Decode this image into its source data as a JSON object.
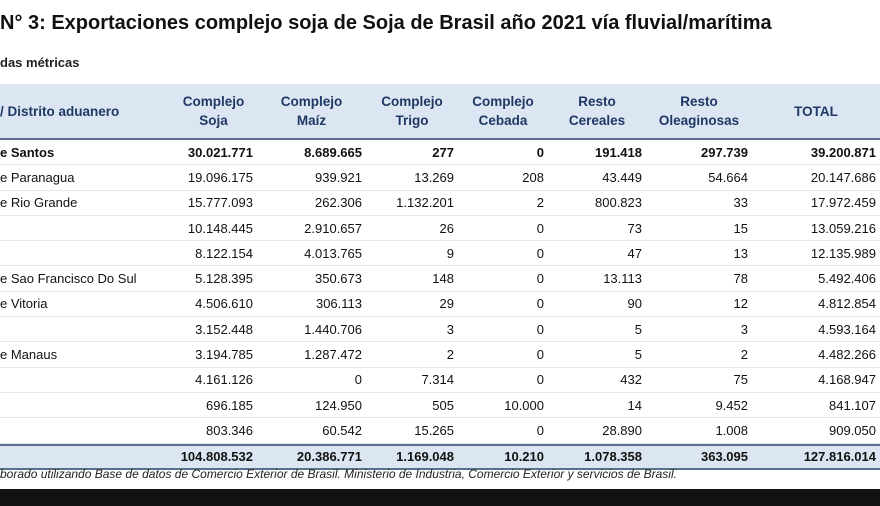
{
  "header": {
    "title": "N° 3: Exportaciones complejo soja de Soja de Brasil año 2021 vía fluvial/marítima",
    "subtitle": "das métricas"
  },
  "table": {
    "columns": [
      "/ Distrito aduanero",
      "Complejo\nSoja",
      "Complejo\nMaíz",
      "Complejo\nTrigo",
      "Complejo\nCebada",
      "Resto\nCereales",
      "Resto\nOleaginosas",
      "TOTAL"
    ],
    "rows": [
      {
        "label": "e Santos",
        "cells": [
          "30.021.771",
          "8.689.665",
          "277",
          "0",
          "191.418",
          "297.739",
          "39.200.871"
        ]
      },
      {
        "label": "e Paranagua",
        "cells": [
          "19.096.175",
          "939.921",
          "13.269",
          "208",
          "43.449",
          "54.664",
          "20.147.686"
        ]
      },
      {
        "label": "e Rio Grande",
        "cells": [
          "15.777.093",
          "262.306",
          "1.132.201",
          "2",
          "800.823",
          "33",
          "17.972.459"
        ]
      },
      {
        "cells": [
          "10.148.445",
          "2.910.657",
          "26",
          "0",
          "73",
          "15",
          "13.059.216"
        ]
      },
      {
        "cells": [
          "8.122.154",
          "4.013.765",
          "9",
          "0",
          "47",
          "13",
          "12.135.989"
        ]
      },
      {
        "label": "e Sao Francisco Do Sul",
        "cells": [
          "5.128.395",
          "350.673",
          "148",
          "0",
          "13.113",
          "78",
          "5.492.406"
        ]
      },
      {
        "label": "e Vitoria",
        "cells": [
          "4.506.610",
          "306.113",
          "29",
          "0",
          "90",
          "12",
          "4.812.854"
        ]
      },
      {
        "cells": [
          "3.152.448",
          "1.440.706",
          "3",
          "0",
          "5",
          "3",
          "4.593.164"
        ]
      },
      {
        "label": "e Manaus",
        "cells": [
          "3.194.785",
          "1.287.472",
          "2",
          "0",
          "5",
          "2",
          "4.482.266"
        ]
      },
      {
        "cells": [
          "4.161.126",
          "0",
          "7.314",
          "0",
          "432",
          "75",
          "4.168.947"
        ]
      },
      {
        "cells": [
          "696.185",
          "124.950",
          "505",
          "10.000",
          "14",
          "9.452",
          "841.107"
        ]
      },
      {
        "cells": [
          "803.346",
          "60.542",
          "15.265",
          "0",
          "28.890",
          "1.008",
          "909.050"
        ]
      }
    ],
    "total": [
      "104.808.532",
      "20.386.771",
      "1.169.048",
      "10.210",
      "1.078.358",
      "363.095",
      "127.816.014"
    ]
  },
  "footer": "borado utilizando Base de datos de Comercio Exterior de Brasil. Ministerio de Industria, Comercio Exterior y servicios de Brasil."
}
